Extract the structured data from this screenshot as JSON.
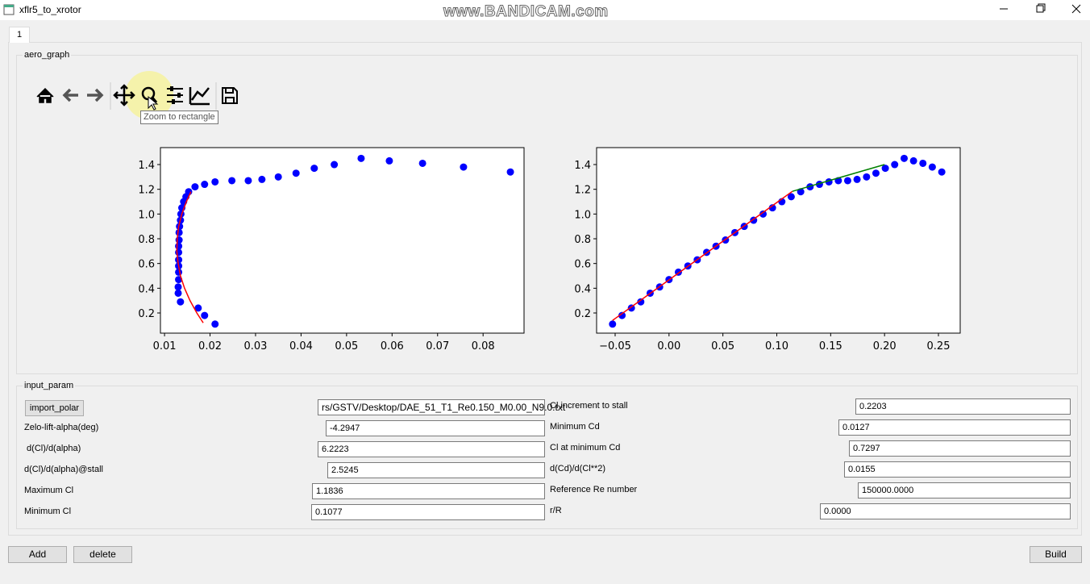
{
  "window": {
    "title": "xflr5_to_xrotor"
  },
  "watermark": "www.BANDICAM.com",
  "tab": "1",
  "aero_graph": {
    "title": "aero_graph",
    "tooltip": "Zoom to rectangle"
  },
  "chart_data": [
    {
      "type": "scatter",
      "xlim": [
        0.0091,
        0.089
      ],
      "ylim": [
        0.037,
        1.537
      ],
      "xticks": [
        0.01,
        0.02,
        0.03,
        0.04,
        0.05,
        0.06,
        0.07,
        0.08
      ],
      "yticks": [
        0.2,
        0.4,
        0.6,
        0.8,
        {
          "value": 1,
          "label": "1.0"
        },
        1.2,
        1.4
      ],
      "series": [
        {
          "mode": "markers",
          "color": "#0000ff",
          "x": [
            0.0211,
            0.0188,
            0.0174,
            0.0135,
            0.013,
            0.013,
            0.0131,
            0.0131,
            0.0131,
            0.0131,
            0.0131,
            0.0131,
            0.0132,
            0.0132,
            0.0133,
            0.0135,
            0.0136,
            0.0138,
            0.0142,
            0.0147,
            0.0153,
            0.0167,
            0.0188,
            0.0211,
            0.0248,
            0.0284,
            0.0314,
            0.035,
            0.0389,
            0.0429,
            0.0473,
            0.0532,
            0.0594,
            0.0667,
            0.0757,
            0.086
          ],
          "values": [
            0.11,
            0.18,
            0.24,
            0.29,
            0.36,
            0.41,
            0.47,
            0.53,
            0.58,
            0.63,
            0.69,
            0.74,
            0.79,
            0.85,
            0.9,
            0.95,
            1.0,
            1.05,
            1.1,
            1.14,
            1.18,
            1.22,
            1.24,
            1.26,
            1.27,
            1.27,
            1.28,
            1.3,
            1.33,
            1.37,
            1.4,
            1.45,
            1.43,
            1.41,
            1.38,
            1.34
          ]
        },
        {
          "mode": "lines",
          "color": "#ff0000",
          "x": [
            0.0185,
            0.0171,
            0.0156,
            0.0144,
            0.0135,
            0.013,
            0.0127,
            0.0128,
            0.0131,
            0.0138,
            0.0148,
            0.0158
          ],
          "values": [
            0.12,
            0.2,
            0.3,
            0.4,
            0.5,
            0.6,
            0.7,
            0.8,
            0.9,
            1.0,
            1.1,
            1.18
          ]
        }
      ]
    },
    {
      "type": "scatter",
      "xlim": [
        -0.0672,
        0.2702
      ],
      "ylim": [
        0.037,
        1.537
      ],
      "xticks": [
        {
          "value": -0.05,
          "label": "−0.05"
        },
        {
          "value": 0,
          "label": "0.00"
        },
        0.05,
        {
          "value": 0.1,
          "label": "0.10"
        },
        0.15,
        {
          "value": 0.2,
          "label": "0.20"
        },
        0.25
      ],
      "yticks": [
        0.2,
        0.4,
        0.6,
        0.8,
        {
          "value": 1,
          "label": "1.0"
        },
        1.2,
        1.4
      ],
      "series": [
        {
          "mode": "markers",
          "color": "#0000ff",
          "x": [
            -0.0524,
            -0.0436,
            -0.0349,
            -0.0262,
            -0.0175,
            -0.0087,
            0,
            0.0087,
            0.0175,
            0.0262,
            0.0349,
            0.0436,
            0.0524,
            0.0611,
            0.0698,
            0.0785,
            0.0873,
            0.096,
            0.1047,
            0.1134,
            0.1222,
            0.1309,
            0.1396,
            0.1484,
            0.1571,
            0.1658,
            0.1745,
            0.1833,
            0.192,
            0.2007,
            0.2094,
            0.2182,
            0.2269,
            0.2356,
            0.2443,
            0.2531
          ],
          "values": [
            0.11,
            0.18,
            0.24,
            0.29,
            0.36,
            0.41,
            0.47,
            0.53,
            0.58,
            0.63,
            0.69,
            0.74,
            0.79,
            0.85,
            0.9,
            0.95,
            1.0,
            1.05,
            1.1,
            1.14,
            1.18,
            1.22,
            1.24,
            1.26,
            1.27,
            1.27,
            1.28,
            1.3,
            1.33,
            1.37,
            1.4,
            1.45,
            1.43,
            1.41,
            1.38,
            1.34
          ]
        },
        {
          "mode": "lines",
          "color": "#ff0000",
          "x": [
            -0.0524,
            0.1145
          ],
          "values": [
            0.14,
            1.1836
          ]
        },
        {
          "mode": "lines",
          "color": "#008000",
          "x": [
            0.1145,
            0.2
          ],
          "values": [
            1.1836,
            1.4
          ]
        }
      ]
    }
  ],
  "input_param": {
    "title": "input_param",
    "import_button": "import_polar",
    "file_path": "rs/GSTV/Desktop/DAE_51_T1_Re0.150_M0.00_N9.0.txt",
    "left_rows": [
      {
        "label": "Zelo-lift-alpha(deg)",
        "value": "-4.2947"
      },
      {
        "label": " d(Cl)/d(alpha)",
        "value": "6.2223"
      },
      {
        "label": "d(Cl)/d(alpha)@stall",
        "value": "2.5245"
      },
      {
        "label": "Maximum Cl",
        "value": "1.1836"
      },
      {
        "label": "Minimum Cl",
        "value": "0.1077"
      }
    ],
    "right_rows": [
      {
        "label": "Cl increment to stall",
        "value": "0.2203"
      },
      {
        "label": "Minimum Cd",
        "value": "0.0127"
      },
      {
        "label": "Cl at minimum Cd",
        "value": "0.7297"
      },
      {
        "label": "d(Cd)/d(Cl**2)",
        "value": "0.0155"
      },
      {
        "label": "Reference Re number",
        "value": "150000.0000"
      },
      {
        "label": "r/R",
        "value": "0.0000"
      }
    ]
  },
  "buttons": {
    "add": "Add",
    "delete": "delete",
    "build": "Build"
  }
}
